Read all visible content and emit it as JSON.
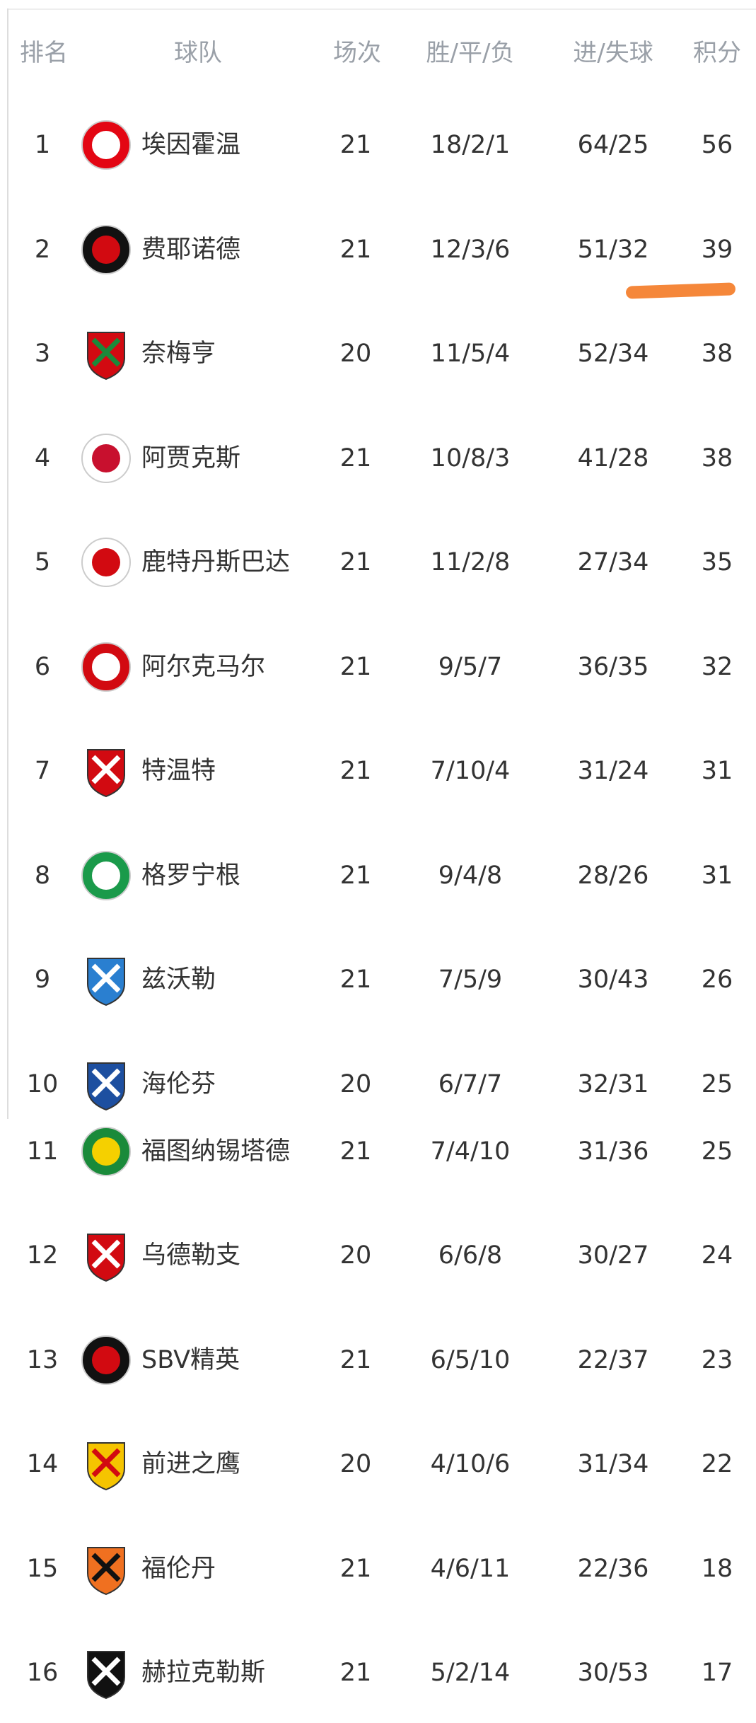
{
  "headers": {
    "rank": "排名",
    "team": "球队",
    "played": "场次",
    "wdl": "胜/平/负",
    "goals": "进/失球",
    "points": "积分"
  },
  "rows": [
    {
      "rank": "1",
      "team": "埃因霍温",
      "played": "21",
      "wdl": "18/2/1",
      "goals": "64/25",
      "points": "56",
      "logo": "psv",
      "c1": "#e30613",
      "c2": "#ffffff"
    },
    {
      "rank": "2",
      "team": "费耶诺德",
      "played": "21",
      "wdl": "12/3/6",
      "goals": "51/32",
      "points": "39",
      "logo": "feyenoord",
      "c1": "#111111",
      "c2": "#d20a11"
    },
    {
      "rank": "3",
      "team": "奈梅亨",
      "played": "20",
      "wdl": "11/5/4",
      "goals": "52/34",
      "points": "38",
      "logo": "nec",
      "c1": "#d20a11",
      "c2": "#1a8a3a"
    },
    {
      "rank": "4",
      "team": "阿贾克斯",
      "played": "21",
      "wdl": "10/8/3",
      "goals": "41/28",
      "points": "38",
      "logo": "ajax",
      "c1": "#ffffff",
      "c2": "#c8102e"
    },
    {
      "rank": "5",
      "team": "鹿特丹斯巴达",
      "played": "21",
      "wdl": "11/2/8",
      "goals": "27/34",
      "points": "35",
      "logo": "sparta",
      "c1": "#ffffff",
      "c2": "#d20a11"
    },
    {
      "rank": "6",
      "team": "阿尔克马尔",
      "played": "21",
      "wdl": "9/5/7",
      "goals": "36/35",
      "points": "32",
      "logo": "az",
      "c1": "#d20a11",
      "c2": "#ffffff"
    },
    {
      "rank": "7",
      "team": "特温特",
      "played": "21",
      "wdl": "7/10/4",
      "goals": "31/24",
      "points": "31",
      "logo": "twente",
      "c1": "#d20a11",
      "c2": "#ffffff"
    },
    {
      "rank": "8",
      "team": "格罗宁根",
      "played": "21",
      "wdl": "9/4/8",
      "goals": "28/26",
      "points": "31",
      "logo": "groningen",
      "c1": "#1a9a4a",
      "c2": "#ffffff"
    },
    {
      "rank": "9",
      "team": "兹沃勒",
      "played": "21",
      "wdl": "7/5/9",
      "goals": "30/43",
      "points": "26",
      "logo": "zwolle",
      "c1": "#2a7fd0",
      "c2": "#ffffff"
    },
    {
      "rank": "10",
      "team": "海伦芬",
      "played": "20",
      "wdl": "6/7/7",
      "goals": "32/31",
      "points": "25",
      "logo": "heerenveen",
      "c1": "#1d4fa0",
      "c2": "#ffffff"
    },
    {
      "rank": "11",
      "team": "福图纳锡塔德",
      "played": "21",
      "wdl": "7/4/10",
      "goals": "31/36",
      "points": "25",
      "logo": "fortuna",
      "c1": "#1a8a3a",
      "c2": "#f5d000"
    },
    {
      "rank": "12",
      "team": "乌德勒支",
      "played": "20",
      "wdl": "6/6/8",
      "goals": "30/27",
      "points": "24",
      "logo": "utrecht",
      "c1": "#d20a11",
      "c2": "#ffffff"
    },
    {
      "rank": "13",
      "team": "SBV精英",
      "played": "21",
      "wdl": "6/5/10",
      "goals": "22/37",
      "points": "23",
      "logo": "excelsior",
      "c1": "#111111",
      "c2": "#d20a11"
    },
    {
      "rank": "14",
      "team": "前进之鹰",
      "played": "20",
      "wdl": "4/10/6",
      "goals": "31/34",
      "points": "22",
      "logo": "goahead",
      "c1": "#f5c400",
      "c2": "#d20a11"
    },
    {
      "rank": "15",
      "team": "福伦丹",
      "played": "21",
      "wdl": "4/6/11",
      "goals": "22/36",
      "points": "18",
      "logo": "volendam",
      "c1": "#f07020",
      "c2": "#111111"
    },
    {
      "rank": "16",
      "team": "赫拉克勒斯",
      "played": "21",
      "wdl": "5/2/14",
      "goals": "30/53",
      "points": "17",
      "logo": "heracles",
      "c1": "#111111",
      "c2": "#ffffff"
    }
  ],
  "highlight_color": "#f5873a"
}
